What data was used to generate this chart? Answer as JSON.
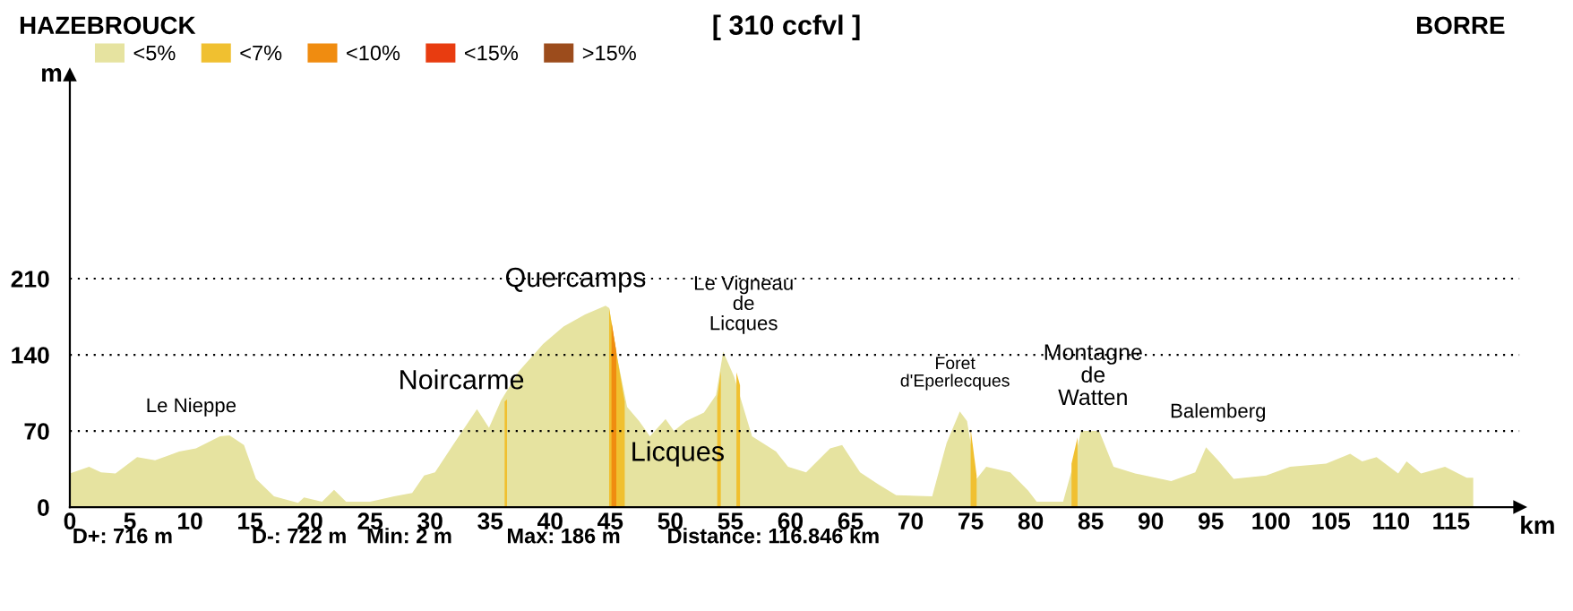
{
  "chart_data": {
    "type": "area",
    "title": "[ 310 ccfvl ]",
    "xlabel": "km",
    "ylabel": "m",
    "annotations": [
      "HAZEBROUCK",
      "BORRE",
      "Le Nieppe",
      "Noircarme",
      "Quercamps",
      "Le Vigneau\nde\nLicques",
      "Licques",
      "Foret\nd'Eperlecques",
      "Montagne\nde\nWatten",
      "Balemberg",
      "D+: 716 m",
      "D-: 722 m",
      "Min: 2 m",
      "Max: 186 m",
      "Distance: 116.846 km"
    ],
    "series": [
      {
        "name": "<5%",
        "color": "#e6e3a0",
        "x": [
          0,
          1.6,
          2.6,
          3.8,
          5.6,
          7.1,
          9.1,
          10.5,
          12.5,
          13.3,
          14.5,
          15.5,
          17.0,
          19.0,
          19.5,
          21.0,
          22.0,
          23.0,
          25.0,
          27.0,
          28.5,
          29.5,
          30.4,
          31.9,
          33.9,
          34.9,
          35.9,
          37.4,
          39.4,
          41.1,
          42.9,
          44.6,
          44.9,
          45.6,
          46.4,
          47.4,
          48.3,
          49.6,
          50.3,
          51.3,
          52.8,
          53.8,
          54.4,
          55.3,
          56.8,
          58.8,
          59.8,
          61.3,
          63.3,
          64.3,
          65.8,
          67.3,
          68.8,
          71.8,
          73.0,
          74.1,
          74.7,
          75.5,
          76.3,
          78.3,
          79.8,
          80.5,
          82.7,
          83.5,
          84.2,
          85.7,
          86.9,
          88.7,
          91.7,
          93.7,
          94.6,
          95.6,
          96.9,
          99.6,
          101.6,
          104.6,
          106.6,
          107.6,
          108.8,
          110.6,
          111.3,
          112.5,
          114.5,
          116.3,
          116.846
        ],
        "values": [
          31,
          37,
          32,
          31,
          46,
          43,
          51,
          54,
          65,
          66,
          57,
          26,
          10,
          4,
          9,
          5,
          16,
          5,
          5,
          10,
          13,
          29,
          32,
          57,
          90,
          73,
          98,
          125,
          150,
          166,
          177,
          185,
          183,
          136,
          92,
          79,
          65,
          81,
          70,
          79,
          87,
          103,
          143,
          120,
          65,
          51,
          37,
          32,
          54,
          57,
          32,
          21,
          11,
          10,
          59,
          88,
          79,
          26,
          37,
          32,
          15,
          5,
          5,
          37,
          70,
          70,
          37,
          31,
          24,
          32,
          55,
          43,
          26,
          29,
          37,
          40,
          49,
          42,
          46,
          31,
          42,
          31,
          37,
          27,
          27
        ]
      },
      {
        "name": "<7%",
        "color": "#f0c030",
        "x": [
          36.2,
          36.4,
          36.5,
          44.9,
          45.6,
          46.2,
          46.3,
          53.9,
          54.2,
          54.3,
          55.5,
          55.8,
          55.9,
          75.0,
          75.5,
          75.6,
          83.4,
          83.9
        ],
        "values": [
          97,
          99,
          null,
          183,
          136,
          97,
          null,
          100,
          125,
          null,
          124,
          112,
          null,
          72,
          29,
          null,
          40,
          64
        ]
      },
      {
        "name": "<10%",
        "color": "#f08c10",
        "x": [
          45.1,
          45.5
        ],
        "values": [
          170,
          143
        ]
      },
      {
        "name": "<15%",
        "color": "#e83c10"
      },
      {
        "name": ">15%",
        "color": "#9c4c1c"
      }
    ],
    "xlim": [
      0,
      120.7
    ],
    "ylim": [
      0,
      397
    ],
    "xticks": [
      0,
      5,
      10,
      15,
      20,
      25,
      30,
      35,
      40,
      45,
      50,
      55,
      60,
      65,
      70,
      75,
      80,
      85,
      90,
      95,
      100,
      105,
      110,
      115
    ],
    "yticks": [
      0,
      70,
      140,
      210
    ],
    "grid": "y",
    "legend": "top left"
  }
}
